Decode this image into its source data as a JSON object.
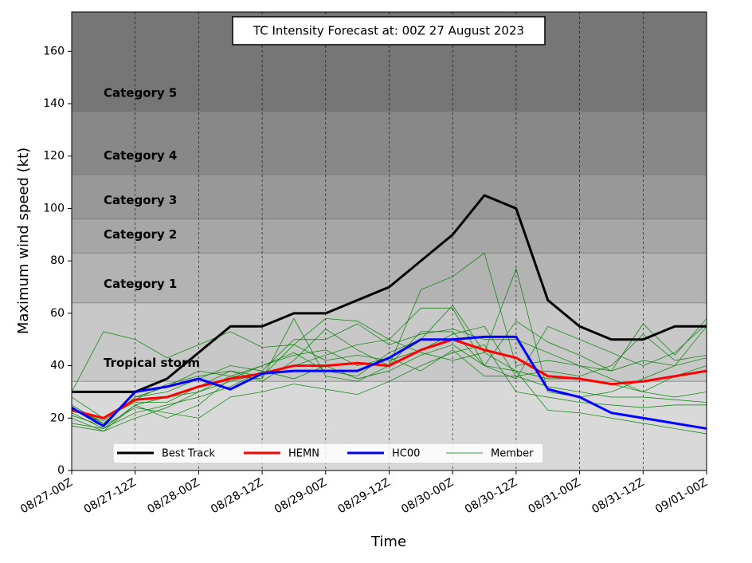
{
  "chart_data": {
    "type": "line",
    "title": "TC Intensity Forecast at: 00Z 27 August 2023",
    "x_label": "Time",
    "y_label": "Maximum wind speed (kt)",
    "xlim": [
      0,
      120
    ],
    "xticks": [
      {
        "value": 0,
        "label": "08/27-00Z"
      },
      {
        "value": 12,
        "label": "08/27-12Z"
      },
      {
        "value": 24,
        "label": "08/28-00Z"
      },
      {
        "value": 36,
        "label": "08/28-12Z"
      },
      {
        "value": 48,
        "label": "08/29-00Z"
      },
      {
        "value": 60,
        "label": "08/29-12Z"
      },
      {
        "value": 72,
        "label": "08/30-00Z"
      },
      {
        "value": 84,
        "label": "08/30-12Z"
      },
      {
        "value": 96,
        "label": "08/31-00Z"
      },
      {
        "value": 108,
        "label": "08/31-12Z"
      },
      {
        "value": 120,
        "label": "09/01-00Z"
      }
    ],
    "ylim": [
      0,
      175
    ],
    "yticks": [
      0,
      20,
      40,
      60,
      80,
      100,
      120,
      140,
      160
    ],
    "grid": "x",
    "legend": "lower left",
    "bands": [
      {
        "from": 0,
        "to": 34,
        "color": "#d9d9d9"
      },
      {
        "label": "Tropical storm",
        "from": 34,
        "to": 64,
        "color": "#c8c8c8"
      },
      {
        "label": "Category 1",
        "from": 64,
        "to": 83,
        "color": "#b3b3b3"
      },
      {
        "label": "Category 2",
        "from": 83,
        "to": 96,
        "color": "#a6a6a6"
      },
      {
        "label": "Category 3",
        "from": 96,
        "to": 113,
        "color": "#989898"
      },
      {
        "label": "Category 4",
        "from": 113,
        "to": 137,
        "color": "#888888"
      },
      {
        "label": "Category 5",
        "from": 137,
        "to": 175,
        "color": "#767676"
      }
    ],
    "x": [
      0,
      6,
      12,
      18,
      24,
      30,
      36,
      42,
      48,
      54,
      60,
      66,
      72,
      78,
      84,
      90,
      96,
      102,
      108,
      114,
      120
    ],
    "members": {
      "name": "Member",
      "color": "#008000",
      "values": [
        [
          30,
          53,
          50,
          43,
          48,
          53,
          47,
          48,
          58,
          57,
          50,
          62,
          62,
          40,
          35,
          55,
          50,
          45,
          40,
          45,
          56
        ],
        [
          22,
          16,
          25,
          28,
          30,
          36,
          35,
          58,
          36,
          34,
          40,
          69,
          74,
          83,
          40,
          42,
          40,
          38,
          42,
          40,
          43
        ],
        [
          20,
          15,
          25,
          20,
          25,
          35,
          40,
          45,
          38,
          36,
          45,
          50,
          63,
          45,
          77,
          30,
          28,
          30,
          35,
          40,
          55
        ],
        [
          24,
          18,
          28,
          30,
          35,
          40,
          38,
          50,
          50,
          56,
          48,
          52,
          54,
          50,
          50,
          45,
          40,
          35,
          30,
          28,
          30
        ],
        [
          18,
          16,
          22,
          25,
          28,
          32,
          38,
          35,
          40,
          35,
          38,
          44,
          48,
          40,
          38,
          23,
          22,
          20,
          18,
          16,
          14
        ],
        [
          28,
          20,
          26,
          26,
          32,
          38,
          36,
          48,
          42,
          44,
          42,
          46,
          52,
          55,
          36,
          38,
          36,
          40,
          52,
          42,
          44
        ],
        [
          21,
          17,
          24,
          22,
          20,
          28,
          30,
          33,
          31,
          29,
          34,
          40,
          45,
          48,
          30,
          28,
          26,
          25,
          24,
          25,
          25
        ],
        [
          23,
          19,
          27,
          33,
          36,
          38,
          34,
          42,
          54,
          46,
          40,
          53,
          53,
          40,
          57,
          49,
          44,
          38,
          56,
          44,
          58
        ],
        [
          25,
          18,
          28,
          32,
          38,
          36,
          40,
          44,
          46,
          40,
          43,
          38,
          46,
          36,
          36,
          32,
          30,
          28,
          28,
          27,
          26
        ],
        [
          17,
          15,
          20,
          24,
          30,
          34,
          37,
          40,
          44,
          48,
          50,
          45,
          42,
          45,
          38,
          35,
          35,
          33,
          30,
          36,
          40
        ]
      ]
    },
    "series": [
      {
        "name": "Best Track",
        "color": "#000000",
        "values": [
          30,
          30,
          30,
          35,
          45,
          55,
          55,
          60,
          60,
          65,
          70,
          80,
          90,
          105,
          100,
          65,
          55,
          50,
          50,
          55,
          55
        ]
      },
      {
        "name": "HEMN",
        "color": "#ff0000",
        "values": [
          23,
          20,
          27,
          28,
          32,
          35,
          37,
          40,
          40,
          41,
          40,
          46,
          50,
          46,
          43,
          36,
          35,
          33,
          34,
          36,
          38
        ]
      },
      {
        "name": "HC00",
        "color": "#0000ff",
        "values": [
          24,
          17,
          30,
          32,
          35,
          31,
          37,
          38,
          38,
          38,
          43,
          50,
          50,
          51,
          51,
          31,
          28,
          22,
          20,
          18,
          16
        ]
      }
    ]
  }
}
